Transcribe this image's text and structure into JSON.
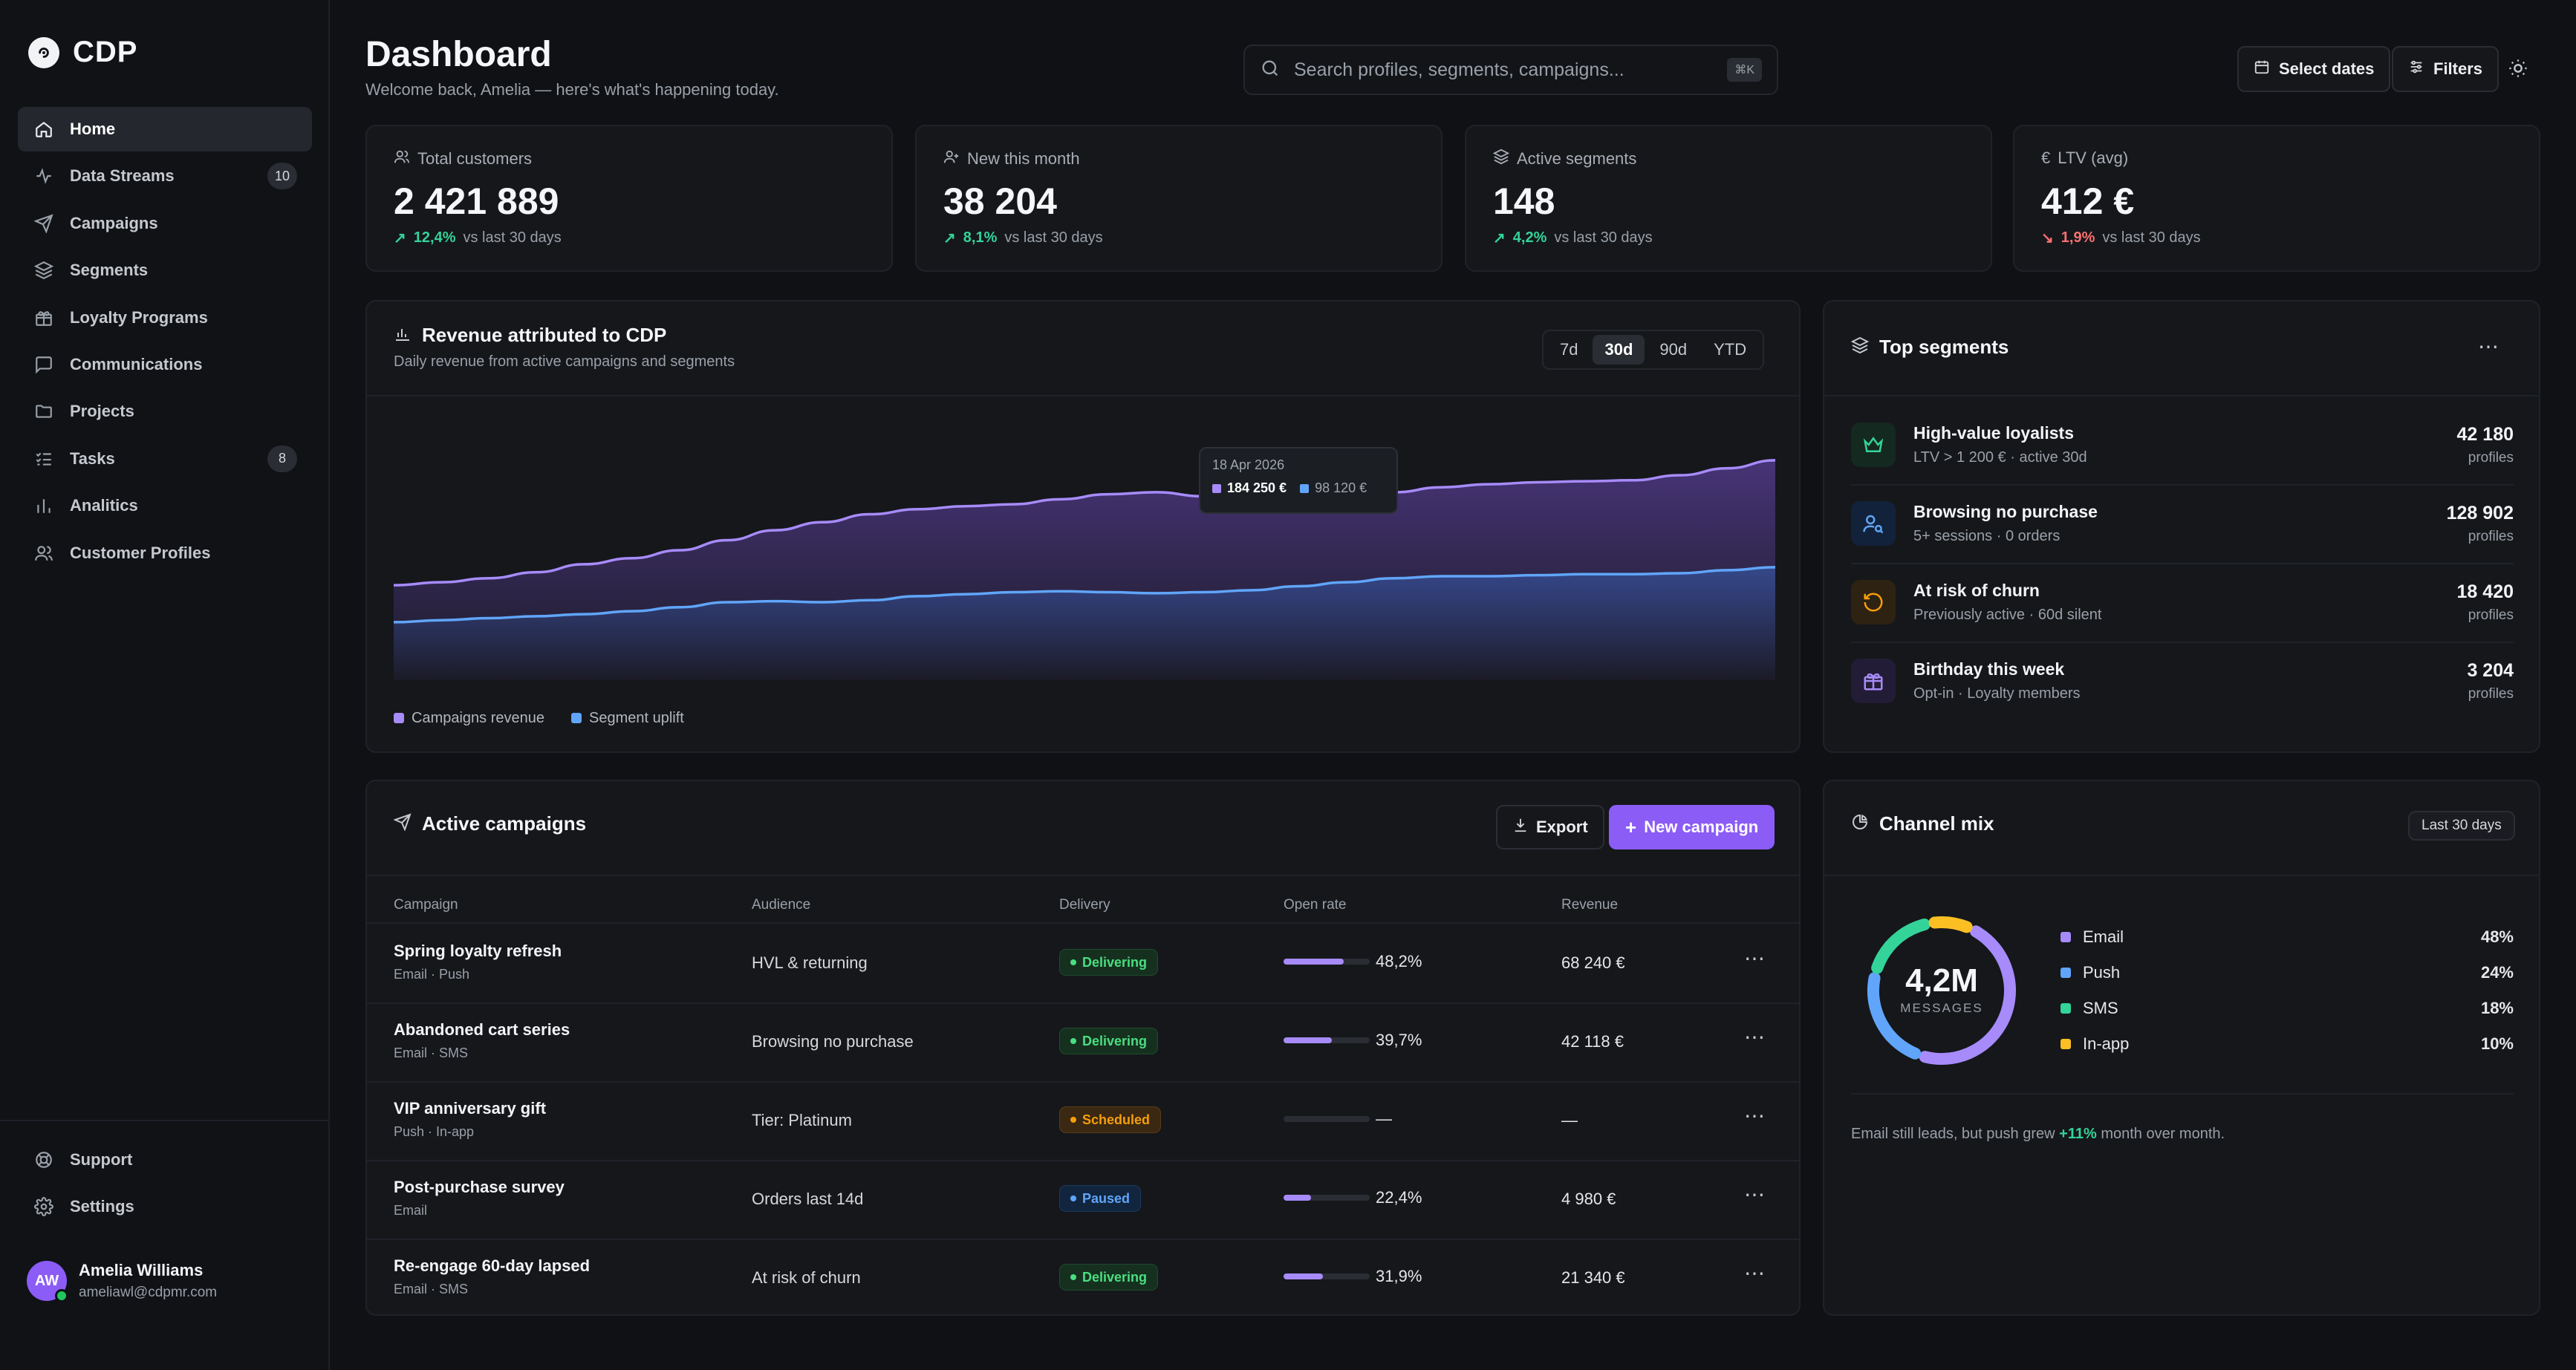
{
  "app": {
    "name": "CDP"
  },
  "sidebar": {
    "items": [
      {
        "label": "Home",
        "icon": "home-icon",
        "active": true
      },
      {
        "label": "Data Streams",
        "icon": "activity-icon",
        "badge": "10"
      },
      {
        "label": "Campaigns",
        "icon": "send-icon"
      },
      {
        "label": "Segments",
        "icon": "layers-icon"
      },
      {
        "label": "Loyalty Programs",
        "icon": "gift-icon"
      },
      {
        "label": "Communications",
        "icon": "message-icon"
      },
      {
        "label": "Projects",
        "icon": "folder-icon"
      },
      {
        "label": "Tasks",
        "icon": "tasks-icon",
        "badge": "8"
      },
      {
        "label": "Analitics",
        "icon": "bar-chart-icon"
      },
      {
        "label": "Customer Profiles",
        "icon": "users-icon"
      }
    ],
    "bottom": [
      {
        "label": "Support",
        "icon": "lifebuoy-icon"
      },
      {
        "label": "Settings",
        "icon": "gear-icon"
      }
    ],
    "user": {
      "initials": "AW",
      "name": "Amelia Williams",
      "email": "ameliawl@cdpmr.com"
    }
  },
  "header": {
    "title": "Dashboard",
    "subtitle": "Welcome back, Amelia — here's what's happening today.",
    "search_placeholder": "Search profiles, segments, campaigns...",
    "search_shortcut": "⌘K",
    "select_dates": "Select dates",
    "filters": "Filters"
  },
  "stats": [
    {
      "label": "Total customers",
      "icon": "users-icon",
      "value": "2 421 889",
      "delta": "12,4%",
      "trend": "up",
      "note": "vs last 30 days"
    },
    {
      "label": "New this month",
      "icon": "user-plus-icon",
      "value": "38 204",
      "delta": "8,1%",
      "trend": "up",
      "note": "vs last 30 days"
    },
    {
      "label": "Active segments",
      "icon": "layers-icon",
      "value": "148",
      "delta": "4,2%",
      "trend": "up",
      "note": "vs last 30 days"
    },
    {
      "label": "LTV (avg)",
      "icon": "euro-icon",
      "value": "412 €",
      "delta": "1,9%",
      "trend": "down",
      "note": "vs last 30 days"
    }
  ],
  "revenue": {
    "title": "Revenue attributed to CDP",
    "subtitle": "Daily revenue from active campaigns and segments",
    "ranges": [
      "7d",
      "30d",
      "90d",
      "YTD"
    ],
    "active_range": "30d",
    "tooltip": {
      "date": "18 Apr 2026",
      "campaigns": "184 250 €",
      "segment": "98 120 €"
    }
  },
  "chart_data": {
    "type": "area",
    "title": "Revenue attributed to CDP",
    "xlabel": "",
    "ylabel": "",
    "grid": false,
    "legend_position": "bottom-left",
    "series": [
      {
        "name": "Campaigns revenue",
        "color": "#a78bfa",
        "values": [
          95,
          98,
          102,
          108,
          116,
          122,
          130,
          140,
          150,
          158,
          166,
          171,
          174,
          176,
          181,
          186,
          188,
          184,
          184,
          183,
          184,
          188,
          193,
          196,
          198,
          199,
          200,
          205,
          212,
          220
        ]
      },
      {
        "name": "Segment uplift",
        "color": "#60a5fa",
        "values": [
          58,
          60,
          62,
          64,
          66,
          69,
          73,
          78,
          79,
          78,
          80,
          84,
          86,
          88,
          89,
          88,
          87,
          88,
          90,
          94,
          98,
          102,
          104,
          104,
          105,
          106,
          106,
          107,
          110,
          113
        ]
      }
    ],
    "ylim": [
      0,
      260
    ]
  },
  "top_segments": {
    "title": "Top segments",
    "unit": "profiles",
    "items": [
      {
        "name": "High-value loyalists",
        "desc": "LTV > 1 200 € · active 30d",
        "count": "42 180",
        "icon": "crown-icon",
        "color": "#34d399",
        "bg": "#14291f"
      },
      {
        "name": "Browsing no purchase",
        "desc": "5+ sessions · 0 orders",
        "count": "128 902",
        "icon": "user-search-icon",
        "color": "#60a5fa",
        "bg": "#12223a"
      },
      {
        "name": "At risk of churn",
        "desc": "Previously active · 60d silent",
        "count": "18 420",
        "icon": "refresh-icon",
        "color": "#f59e0b",
        "bg": "#2e2212"
      },
      {
        "name": "Birthday this week",
        "desc": "Opt-in · Loyalty members",
        "count": "3 204",
        "icon": "gift-icon",
        "color": "#a78bfa",
        "bg": "#231c36"
      }
    ]
  },
  "campaigns": {
    "title": "Active campaigns",
    "export": "Export",
    "new": "New campaign",
    "columns": [
      "Campaign",
      "Audience",
      "Delivery",
      "Open rate",
      "Revenue"
    ],
    "rows": [
      {
        "name": "Spring loyalty refresh",
        "channels": "Email · Push",
        "audience": "HVL & returning",
        "status": "Delivering",
        "status_type": "deliv",
        "rate": "48,2%",
        "rate_value": 0.7,
        "revenue": "68 240 €"
      },
      {
        "name": "Abandoned cart series",
        "channels": "Email · SMS",
        "audience": "Browsing no purchase",
        "status": "Delivering",
        "status_type": "deliv",
        "rate": "39,7%",
        "rate_value": 0.56,
        "revenue": "42 118 €"
      },
      {
        "name": "VIP anniversary gift",
        "channels": "Push · In-app",
        "audience": "Tier: Platinum",
        "status": "Scheduled",
        "status_type": "sched",
        "rate": "—",
        "rate_value": 0,
        "revenue": "—"
      },
      {
        "name": "Post-purchase survey",
        "channels": "Email",
        "audience": "Orders last 14d",
        "status": "Paused",
        "status_type": "paused",
        "rate": "22,4%",
        "rate_value": 0.32,
        "revenue": "4 980 €"
      },
      {
        "name": "Re-engage 60-day lapsed",
        "channels": "Email · SMS",
        "audience": "At risk of churn",
        "status": "Delivering",
        "status_type": "deliv",
        "rate": "31,9%",
        "rate_value": 0.46,
        "revenue": "21 340 €"
      }
    ]
  },
  "channel_mix": {
    "title": "Channel mix",
    "period": "Last 30 days",
    "total": "4,2M",
    "total_label": "MESSAGES",
    "items": [
      {
        "label": "Email",
        "pct": "48%",
        "value": 48,
        "color": "#a78bfa"
      },
      {
        "label": "Push",
        "pct": "24%",
        "value": 24,
        "color": "#60a5fa"
      },
      {
        "label": "SMS",
        "pct": "18%",
        "value": 18,
        "color": "#34d399"
      },
      {
        "label": "In-app",
        "pct": "10%",
        "value": 10,
        "color": "#fbbf24"
      }
    ],
    "note_prefix": "Email still leads, but push grew",
    "note_highlight": "+11%",
    "note_suffix": "month over month."
  }
}
